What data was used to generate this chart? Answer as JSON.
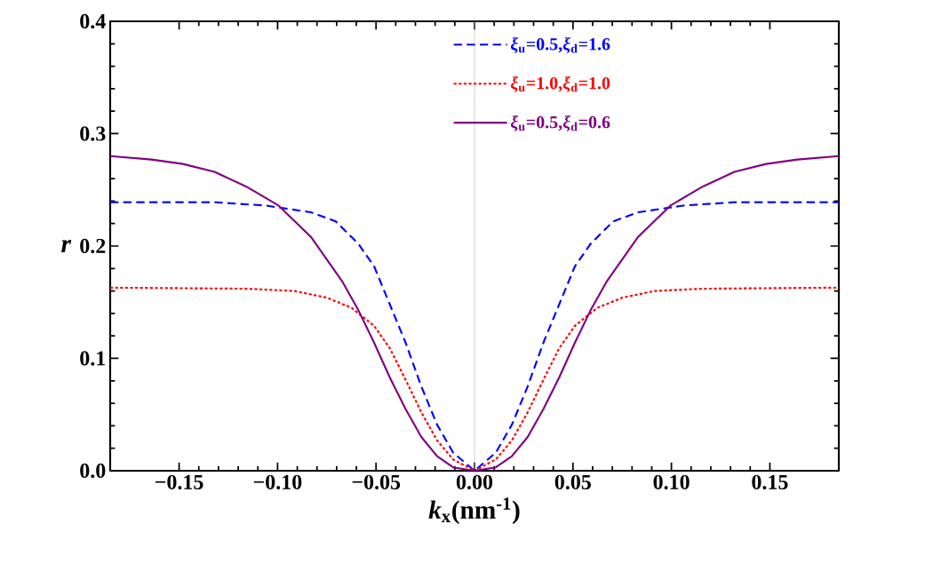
{
  "chart_data": {
    "type": "line",
    "xlabel": "*k*$_{x}$(nm$^{-1}$)",
    "ylabel": "*r*",
    "xlim": [
      -0.185,
      0.185
    ],
    "ylim": [
      0,
      0.4
    ],
    "xticks": [
      {
        "value": -0.15,
        "label": "−0.15"
      },
      {
        "value": -0.1,
        "label": "−0.10"
      },
      {
        "value": -0.05,
        "label": "−0.05"
      },
      {
        "value": 0,
        "label": "0.00"
      },
      {
        "value": 0.05,
        "label": "0.05"
      },
      {
        "value": 0.1,
        "label": "0.10"
      },
      {
        "value": 0.15,
        "label": "0.15"
      }
    ],
    "yticks": [
      {
        "value": 0,
        "label": "0.0"
      },
      {
        "value": 0.1,
        "label": "0.1"
      },
      {
        "value": 0.2,
        "label": "0.2"
      },
      {
        "value": 0.3,
        "label": "0.3"
      },
      {
        "value": 0.4,
        "label": "0.4"
      }
    ],
    "grid": false,
    "legend": "top",
    "marker": "none",
    "ref_lines": [
      {
        "axis": "x",
        "value": 0,
        "color": "#b4b4b4"
      }
    ],
    "series": [
      {
        "name": "*ξ*$_{u}$=0.5,*ξ*$_{d}$=1.6",
        "color": "#0000ff",
        "line_style": "dashed",
        "x": [
          -0.185,
          -0.132,
          -0.106,
          -0.083,
          -0.0705,
          -0.059,
          -0.051,
          -0.043,
          -0.035,
          -0.027,
          -0.019,
          -0.0108,
          0,
          0.0108,
          0.019,
          0.027,
          0.035,
          0.043,
          0.051,
          0.059,
          0.0705,
          0.083,
          0.106,
          0.132,
          0.185
        ],
        "values": [
          0.239,
          0.239,
          0.236,
          0.23,
          0.222,
          0.202,
          0.182,
          0.148,
          0.114,
          0.075,
          0.041,
          0.016,
          0,
          0.016,
          0.041,
          0.075,
          0.114,
          0.148,
          0.182,
          0.202,
          0.222,
          0.23,
          0.236,
          0.239,
          0.239
        ]
      },
      {
        "name": "*ξ*$_{u}$=1.0,*ξ*$_{d}$=1.0",
        "color": "#ff0000",
        "line_style": "dotted",
        "x": [
          -0.185,
          -0.116,
          -0.0915,
          -0.075,
          -0.0624,
          -0.051,
          -0.043,
          -0.035,
          -0.027,
          -0.019,
          -0.0108,
          0,
          0.0108,
          0.019,
          0.027,
          0.035,
          0.043,
          0.051,
          0.0624,
          0.075,
          0.0915,
          0.116,
          0.185
        ],
        "values": [
          0.163,
          0.162,
          0.16,
          0.154,
          0.145,
          0.129,
          0.109,
          0.081,
          0.052,
          0.027,
          0.01,
          0,
          0.01,
          0.027,
          0.052,
          0.081,
          0.109,
          0.129,
          0.145,
          0.154,
          0.16,
          0.162,
          0.163
        ]
      },
      {
        "name": "*ξ*$_{u}$=0.5,*ξ*$_{d}$=0.6",
        "color": "#800080",
        "line_style": "solid",
        "x": [
          -0.185,
          -0.164,
          -0.148,
          -0.132,
          -0.116,
          -0.0995,
          -0.083,
          -0.067,
          -0.059,
          -0.051,
          -0.043,
          -0.035,
          -0.027,
          -0.019,
          -0.0108,
          0,
          0.0108,
          0.019,
          0.027,
          0.035,
          0.043,
          0.051,
          0.059,
          0.067,
          0.083,
          0.0995,
          0.116,
          0.132,
          0.148,
          0.164,
          0.185
        ],
        "values": [
          0.28,
          0.277,
          0.273,
          0.266,
          0.253,
          0.236,
          0.208,
          0.168,
          0.143,
          0.114,
          0.083,
          0.055,
          0.03,
          0.013,
          0.003,
          0,
          0.003,
          0.013,
          0.03,
          0.055,
          0.083,
          0.114,
          0.143,
          0.168,
          0.208,
          0.236,
          0.253,
          0.266,
          0.273,
          0.277,
          0.28
        ]
      }
    ]
  }
}
